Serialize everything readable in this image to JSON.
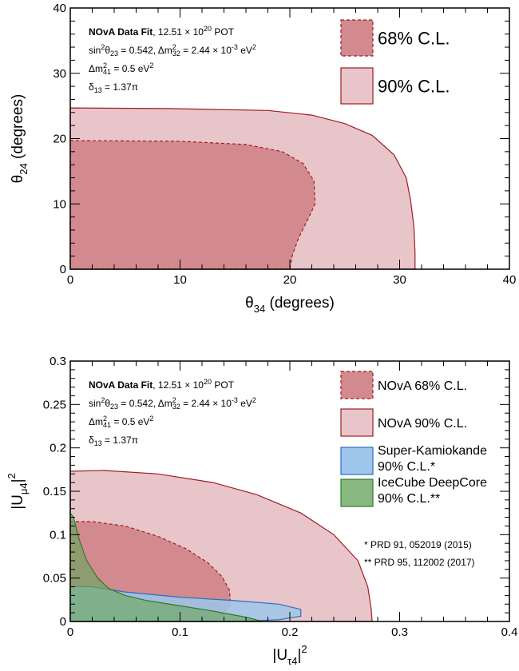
{
  "chart_data": [
    {
      "type": "area",
      "xlabel_main": "θ",
      "xlabel_sub": "34",
      "xlabel_tail": " (degrees)",
      "ylabel_main": "θ",
      "ylabel_sub": "24",
      "ylabel_tail": " (degrees)",
      "xlim": [
        0,
        40
      ],
      "ylim": [
        0,
        40
      ],
      "xticks": [
        "0",
        "10",
        "20",
        "30",
        "40"
      ],
      "yticks": [
        "0",
        "10",
        "20",
        "30",
        "40"
      ],
      "info": {
        "line1_bold": "NOvA Data Fit",
        "line1_rest": ", 12.51 × 10",
        "line1_sup": "20",
        "line1_tail": " POT",
        "line2_a": "sin",
        "line2_sup": "2",
        "line2_b": "θ",
        "line2_sub": "23",
        "line2_c": " = 0.542, Δm",
        "line2_sup2": "2",
        "line2_sub2": "32",
        "line2_d": " = 2.44 × 10",
        "line2_sup3": "-3",
        "line2_e": " eV",
        "line2_sup4": "2",
        "line3_a": "Δm",
        "line3_sup": "2",
        "line3_sub": "41",
        "line3_b": " = 0.5 eV",
        "line3_sup2": "2",
        "line4_a": "δ",
        "line4_sub": "13",
        "line4_b": " = 1.37π"
      },
      "legend_position": "top-right",
      "series": [
        {
          "name": "90% C.L.",
          "fill": "#e8c5c8",
          "stroke": "#a01c24",
          "dashed": false,
          "x": [
            0,
            9,
            18,
            22,
            25,
            27.5,
            29.5,
            30.6,
            31.0,
            31.3,
            31.4,
            31.4,
            0
          ],
          "y": [
            24.7,
            24.6,
            24.3,
            23.6,
            22.3,
            20.5,
            17.5,
            14.0,
            10.5,
            6.5,
            2.5,
            0,
            0
          ]
        },
        {
          "name": "68% C.L.",
          "fill": "#d28a8e",
          "stroke": "#a01c24",
          "dashed": true,
          "x": [
            0,
            10,
            16,
            19.3,
            21.2,
            22.2,
            22.3,
            21.6,
            20.8,
            20.2,
            20.0,
            0
          ],
          "y": [
            19.7,
            19.6,
            19.1,
            18.0,
            16.2,
            13.5,
            10.0,
            7.5,
            4.8,
            2.0,
            0,
            0
          ]
        }
      ]
    },
    {
      "type": "area",
      "xlabel_main": "|U",
      "xlabel_sub": "τ4",
      "xlabel_sup": "2",
      "xlabel_tail": "|",
      "ylabel_main": "|U",
      "ylabel_sub": "μ4",
      "ylabel_sup": "2",
      "ylabel_tail": "|",
      "xlim": [
        0,
        0.4
      ],
      "ylim": [
        0,
        0.3
      ],
      "xticks": [
        "0",
        "0.1",
        "0.2",
        "0.3",
        "0.4"
      ],
      "yticks": [
        "0",
        "0.05",
        "0.1",
        "0.15",
        "0.2",
        "0.25",
        "0.3"
      ],
      "info": {
        "line1_bold": "NOvA Data Fit",
        "line1_rest": ", 12.51 × 10",
        "line1_sup": "20",
        "line1_tail": " POT",
        "line2_a": "sin",
        "line2_sup": "2",
        "line2_b": "θ",
        "line2_sub": "23",
        "line2_c": " = 0.542, Δm",
        "line2_sup2": "2",
        "line2_sub2": "32",
        "line2_d": " = 2.44 × 10",
        "line2_sup3": "-3",
        "line2_e": " eV",
        "line2_sup4": "2",
        "line3_a": "Δm",
        "line3_sup": "2",
        "line3_sub": "41",
        "line3_b": " = 0.5 eV",
        "line3_sup2": "2",
        "line4_a": "δ",
        "line4_sub": "13",
        "line4_b": " = 1.37π"
      },
      "legend_position": "top-right",
      "references": [
        "* PRD 91, 052019 (2015)",
        "** PRD 95, 112002 (2017)"
      ],
      "series": [
        {
          "name": "NOvA 90% C.L.",
          "legend_lines": [
            "NOvA 90% C.L."
          ],
          "fill": "#e8c5c8",
          "stroke": "#a01c24",
          "dashed": false,
          "opacity": 1,
          "x": [
            0,
            0.03,
            0.08,
            0.13,
            0.17,
            0.21,
            0.24,
            0.262,
            0.271,
            0.274,
            0.275,
            0
          ],
          "y": [
            0.173,
            0.174,
            0.17,
            0.16,
            0.146,
            0.125,
            0.1,
            0.07,
            0.04,
            0.015,
            0,
            0
          ]
        },
        {
          "name": "NOvA 68% C.L.",
          "legend_lines": [
            "NOvA 68% C.L."
          ],
          "fill": "#d28a8e",
          "stroke": "#a01c24",
          "dashed": true,
          "opacity": 1,
          "x": [
            0,
            0.02,
            0.05,
            0.08,
            0.105,
            0.125,
            0.138,
            0.145,
            0.146,
            0.14,
            0.135,
            0.13,
            0
          ],
          "y": [
            0.115,
            0.115,
            0.11,
            0.098,
            0.084,
            0.068,
            0.052,
            0.036,
            0.02,
            0.01,
            0.004,
            0,
            0
          ]
        },
        {
          "name": "Super-Kamiokande 90% C.L.*",
          "legend_lines": [
            "Super-Kamiokande",
            "90% C.L.*"
          ],
          "fill": "#9ec6ea",
          "stroke": "#2a6fc4",
          "dashed": false,
          "opacity": 0.85,
          "x": [
            0,
            0.02,
            0.05,
            0.1,
            0.15,
            0.19,
            0.21,
            0.21,
            0.19,
            0.15,
            0.1,
            0.05,
            0
          ],
          "y": [
            0.04,
            0.04,
            0.034,
            0.028,
            0.024,
            0.02,
            0.014,
            0.006,
            0.002,
            0,
            0,
            0,
            0
          ]
        },
        {
          "name": "IceCube DeepCore 90% C.L.**",
          "legend_lines": [
            "IceCube DeepCore",
            "90% C.L.**"
          ],
          "fill": "#6aa860",
          "stroke": "#2f7a2a",
          "dashed": false,
          "opacity": 0.65,
          "x": [
            0,
            0.003,
            0.008,
            0.015,
            0.025,
            0.035,
            0.05,
            0.07,
            0.1,
            0.13,
            0.16,
            0.175,
            0
          ],
          "y": [
            0.125,
            0.12,
            0.095,
            0.07,
            0.05,
            0.038,
            0.03,
            0.024,
            0.018,
            0.012,
            0.005,
            0,
            0
          ]
        }
      ]
    }
  ]
}
